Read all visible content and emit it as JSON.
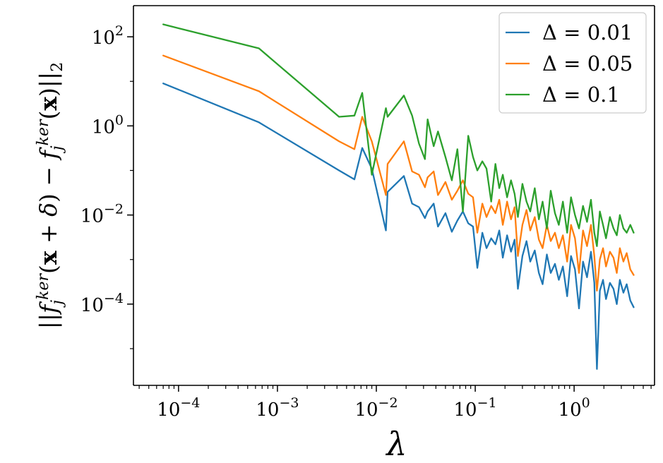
{
  "chart_data": {
    "type": "line",
    "xscale": "log",
    "yscale": "log",
    "xlabel": "λ",
    "ylabel": "||f_j^ker(x+δ) − f_j^ker(x)||_2",
    "ylabel_parts": [
      "||",
      "f",
      "j",
      "ker",
      "(",
      "x",
      " + ",
      "δ",
      ") − ",
      "f",
      "j",
      "ker",
      "(",
      "x",
      ")||",
      "2"
    ],
    "xlim": [
      3.5e-05,
      6.5
    ],
    "ylim": [
      1.5e-06,
      500
    ],
    "xticks": [
      {
        "value": 0.0001,
        "base": "10",
        "exp": "−4"
      },
      {
        "value": 0.001,
        "base": "10",
        "exp": "−3"
      },
      {
        "value": 0.01,
        "base": "10",
        "exp": "−2"
      },
      {
        "value": 0.1,
        "base": "10",
        "exp": "−1"
      },
      {
        "value": 1,
        "base": "10",
        "exp": "0"
      }
    ],
    "yticks": [
      {
        "value": 0.0001,
        "base": "10",
        "exp": "−4"
      },
      {
        "value": 0.01,
        "base": "10",
        "exp": "−2"
      },
      {
        "value": 1,
        "base": "10",
        "exp": "0"
      },
      {
        "value": 100,
        "base": "10",
        "exp": "2"
      }
    ],
    "legend_position": "top-right",
    "x": [
      7e-05,
      0.00065,
      0.0042,
      0.006,
      0.0072,
      0.009,
      0.0125,
      0.013,
      0.019,
      0.023,
      0.027,
      0.031,
      0.033,
      0.038,
      0.042,
      0.05,
      0.058,
      0.066,
      0.075,
      0.085,
      0.095,
      0.105,
      0.118,
      0.13,
      0.145,
      0.16,
      0.175,
      0.19,
      0.21,
      0.23,
      0.25,
      0.27,
      0.3,
      0.33,
      0.36,
      0.4,
      0.44,
      0.48,
      0.53,
      0.58,
      0.64,
      0.7,
      0.77,
      0.85,
      0.93,
      1.02,
      1.12,
      1.23,
      1.35,
      1.48,
      1.6,
      1.7,
      1.82,
      1.96,
      2.1,
      2.3,
      2.5,
      2.7,
      2.9,
      3.15,
      3.4,
      3.7,
      4.0
    ],
    "series": [
      {
        "name": "Δ = 0.01",
        "legend_base": "Δ = ",
        "legend_value": "0.01",
        "color": "#1f77b4",
        "values": [
          9.0,
          1.2,
          0.1,
          0.063,
          0.32,
          0.11,
          0.0045,
          0.033,
          0.075,
          0.018,
          0.015,
          0.0085,
          0.012,
          0.018,
          0.0055,
          0.011,
          0.0042,
          0.0075,
          0.012,
          0.0065,
          0.0055,
          0.00065,
          0.004,
          0.0018,
          0.003,
          0.0022,
          0.0045,
          0.0011,
          0.0035,
          0.0015,
          0.0028,
          0.00022,
          0.0012,
          0.0026,
          0.0009,
          0.0016,
          0.0005,
          0.00028,
          0.0013,
          0.0005,
          0.0008,
          0.00035,
          0.0007,
          0.00015,
          0.0012,
          0.0006,
          8e-05,
          0.0009,
          0.0004,
          0.0015,
          0.0003,
          3.5e-06,
          0.0002,
          0.00035,
          0.00013,
          0.0003,
          0.00022,
          0.0001,
          0.00035,
          0.00018,
          0.00028,
          0.00012,
          8.5e-05
        ]
      },
      {
        "name": "Δ = 0.05",
        "legend_base": "Δ = ",
        "legend_value": "0.05",
        "color": "#ff7f0e",
        "values": [
          38.0,
          6.0,
          0.45,
          0.3,
          1.6,
          0.45,
          0.028,
          0.14,
          0.45,
          0.095,
          0.08,
          0.042,
          0.07,
          0.095,
          0.028,
          0.055,
          0.022,
          0.035,
          0.06,
          0.03,
          0.025,
          0.004,
          0.018,
          0.009,
          0.016,
          0.011,
          0.022,
          0.006,
          0.02,
          0.008,
          0.015,
          0.0012,
          0.006,
          0.013,
          0.0045,
          0.009,
          0.0028,
          0.0018,
          0.006,
          0.0026,
          0.004,
          0.0018,
          0.0035,
          0.0009,
          0.006,
          0.003,
          0.0005,
          0.0045,
          0.002,
          0.006,
          0.0012,
          0.0002,
          0.001,
          0.0018,
          0.0007,
          0.0015,
          0.0011,
          0.0005,
          0.0018,
          0.0009,
          0.0014,
          0.0006,
          0.00045
        ]
      },
      {
        "name": "Δ = 0.1",
        "legend_base": "Δ = ",
        "legend_value": "0.1",
        "color": "#2ca02c",
        "values": [
          190.0,
          55.0,
          1.6,
          1.7,
          5.5,
          0.08,
          2.5,
          1.6,
          4.8,
          1.7,
          0.4,
          0.18,
          1.4,
          0.35,
          0.75,
          0.2,
          0.06,
          0.3,
          0.012,
          0.6,
          0.2,
          0.1,
          0.16,
          0.11,
          0.02,
          0.14,
          0.04,
          0.08,
          0.025,
          0.06,
          0.03,
          0.009,
          0.05,
          0.02,
          0.012,
          0.04,
          0.008,
          0.02,
          0.005,
          0.035,
          0.011,
          0.006,
          0.02,
          0.004,
          0.025,
          0.01,
          0.005,
          0.016,
          0.007,
          0.022,
          0.004,
          0.002,
          0.012,
          0.006,
          0.003,
          0.009,
          0.005,
          0.0035,
          0.01,
          0.005,
          0.004,
          0.006,
          0.004
        ]
      }
    ]
  }
}
